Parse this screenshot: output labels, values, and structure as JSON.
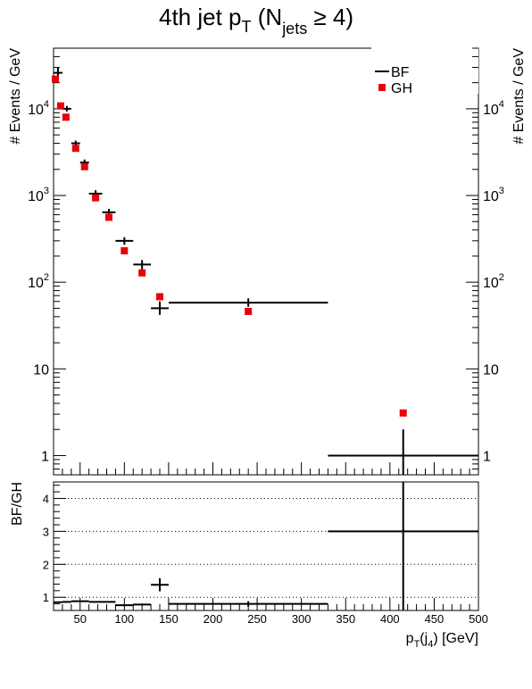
{
  "chart_data": {
    "type": "scatter",
    "title": {
      "main": "4th jet p",
      "sub_t": "T",
      "open": " (N",
      "sub_jets": "jets",
      "rest": " ≥ 4)"
    },
    "legend": {
      "placement": "top-right",
      "entries": [
        {
          "label": "BF",
          "style": "error-cross",
          "color": "#000000"
        },
        {
          "label": "GH",
          "style": "square-marker",
          "color": "#e8000a"
        }
      ]
    },
    "upper": {
      "ylabel": "# Events / GeV",
      "yscale": "log",
      "ylim": [
        0.6,
        50000
      ],
      "yticks": [
        {
          "v": 1,
          "base": "1",
          "exp": ""
        },
        {
          "v": 10,
          "base": "10",
          "exp": ""
        },
        {
          "v": 100,
          "base": "10",
          "exp": "2"
        },
        {
          "v": 1000,
          "base": "10",
          "exp": "3"
        },
        {
          "v": 10000,
          "base": "10",
          "exp": "4"
        }
      ]
    },
    "lower": {
      "ylabel": "BF/GH",
      "ylim": [
        0.6,
        4.5
      ],
      "yticks": [
        1,
        2,
        3,
        4
      ],
      "grid_lines": [
        1,
        2,
        3,
        4
      ]
    },
    "x": {
      "label_main": "p",
      "label_sub_t": "T",
      "label_mid": "(j",
      "label_sub_4": "4",
      "label_end": ") [GeV]",
      "xlim": [
        20,
        500
      ],
      "ticks": [
        50,
        100,
        150,
        200,
        250,
        300,
        350,
        400,
        450,
        500
      ],
      "tick_labels": [
        "50",
        "100",
        "150",
        "200",
        "250",
        "300",
        "350",
        "400",
        "450",
        "500"
      ]
    },
    "series": [
      {
        "name": "BF",
        "points": [
          {
            "x": 25,
            "xlo": 20,
            "xhi": 30,
            "y": 26000,
            "ylo": 23000,
            "yhi": 30000
          },
          {
            "x": 35,
            "xlo": 30,
            "xhi": 40,
            "y": 10000,
            "ylo": 9300,
            "yhi": 10800
          },
          {
            "x": 45,
            "xlo": 40,
            "xhi": 50,
            "y": 4000,
            "ylo": 3700,
            "yhi": 4300
          },
          {
            "x": 55,
            "xlo": 50,
            "xhi": 60,
            "y": 2400,
            "ylo": 2200,
            "yhi": 2600
          },
          {
            "x": 67.5,
            "xlo": 60,
            "xhi": 75,
            "y": 1050,
            "ylo": 960,
            "yhi": 1150
          },
          {
            "x": 82.5,
            "xlo": 75,
            "xhi": 90,
            "y": 640,
            "ylo": 580,
            "yhi": 700
          },
          {
            "x": 100,
            "xlo": 90,
            "xhi": 110,
            "y": 300,
            "ylo": 270,
            "yhi": 330
          },
          {
            "x": 120,
            "xlo": 110,
            "xhi": 130,
            "y": 160,
            "ylo": 140,
            "yhi": 180
          },
          {
            "x": 140,
            "xlo": 130,
            "xhi": 150,
            "y": 50,
            "ylo": 42,
            "yhi": 60
          },
          {
            "x": 240,
            "xlo": 150,
            "xhi": 330,
            "y": 58,
            "ylo": 52,
            "yhi": 65
          },
          {
            "x": 415,
            "xlo": 330,
            "xhi": 500,
            "y": 1,
            "ylo": 0.4,
            "yhi": 2
          }
        ]
      },
      {
        "name": "GH",
        "points": [
          {
            "x": 22,
            "y": 22000
          },
          {
            "x": 28,
            "y": 10800
          },
          {
            "x": 34,
            "y": 8000
          },
          {
            "x": 45,
            "y": 3500
          },
          {
            "x": 55,
            "y": 2150
          },
          {
            "x": 67.5,
            "y": 940
          },
          {
            "x": 82.5,
            "y": 560
          },
          {
            "x": 100,
            "y": 230
          },
          {
            "x": 120,
            "y": 128
          },
          {
            "x": 140,
            "y": 68
          },
          {
            "x": 240,
            "y": 46
          },
          {
            "x": 415,
            "y": 3.1
          }
        ]
      }
    ],
    "ratio": {
      "name": "BF/GH",
      "points": [
        {
          "x": 25,
          "xlo": 20,
          "xhi": 30,
          "y": 0.85,
          "ylo": 0.83,
          "yhi": 0.87
        },
        {
          "x": 35,
          "xlo": 30,
          "xhi": 40,
          "y": 0.86,
          "ylo": 0.84,
          "yhi": 0.88
        },
        {
          "x": 45,
          "xlo": 40,
          "xhi": 50,
          "y": 0.88,
          "ylo": 0.86,
          "yhi": 0.9
        },
        {
          "x": 55,
          "xlo": 50,
          "xhi": 60,
          "y": 0.88,
          "ylo": 0.86,
          "yhi": 0.9
        },
        {
          "x": 67.5,
          "xlo": 60,
          "xhi": 75,
          "y": 0.86,
          "ylo": 0.84,
          "yhi": 0.88
        },
        {
          "x": 82.5,
          "xlo": 75,
          "xhi": 90,
          "y": 0.86,
          "ylo": 0.84,
          "yhi": 0.88
        },
        {
          "x": 100,
          "xlo": 90,
          "xhi": 110,
          "y": 0.76,
          "ylo": 0.73,
          "yhi": 0.79
        },
        {
          "x": 120,
          "xlo": 110,
          "xhi": 130,
          "y": 0.78,
          "ylo": 0.75,
          "yhi": 0.81
        },
        {
          "x": 140,
          "xlo": 130,
          "xhi": 150,
          "y": 1.38,
          "ylo": 1.18,
          "yhi": 1.58
        },
        {
          "x": 240,
          "xlo": 150,
          "xhi": 330,
          "y": 0.8,
          "ylo": 0.72,
          "yhi": 0.88
        },
        {
          "x": 415,
          "xlo": 330,
          "xhi": 500,
          "y": 3,
          "ylo": 0.6,
          "yhi": 4.5
        }
      ]
    }
  }
}
